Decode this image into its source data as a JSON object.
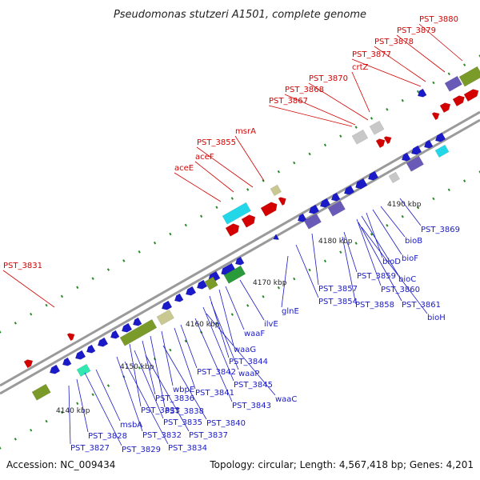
{
  "title": "Pseudomonas stutzeri A1501, complete genome",
  "accession": "Accession: NC_009434",
  "topology": "Topology: circular; Length: 4,567,418 bp; Genes: 4,201",
  "colors": {
    "cds_forward": "#d40000",
    "cds_reverse": "#1a1ac8",
    "backbone": "#9a9a9a",
    "cog_cyan": "#22d8e8",
    "cog_olive": "#7a9a2a",
    "cog_purple": "#6a5ab8",
    "cog_khaki": "#c8c890",
    "cog_gray": "#c8c8c8",
    "cog_green": "#2a9a3a",
    "tick_dots": "#2a8a2a"
  },
  "ticks": [
    "4140 kbp",
    "4150 kbp",
    "4160 kbp",
    "4170 kbp",
    "4180 kbp",
    "4190 kbp"
  ],
  "labels_top": [
    "PST_3880",
    "PST_3879",
    "PST_3878",
    "PST_3877",
    "crtZ",
    "PST_3870",
    "PST_3868",
    "PST_3867",
    "msrA",
    "PST_3855",
    "aceF",
    "aceE",
    "PST_3831"
  ],
  "labels_bottom": [
    "PST_3869",
    "bioB",
    "bioF",
    "bioD",
    "bioC",
    "PST_3860",
    "PST_3861",
    "bioH",
    "PST_3859",
    "PST_3857",
    "PST_3858",
    "PST_3854",
    "glnE",
    "ilvE",
    "waaF",
    "waaG",
    "PST_3844",
    "waaP",
    "PST_3845",
    "waaC",
    "PST_3843",
    "PST_3842",
    "PST_3841",
    "wbpE",
    "PST_3838",
    "PST_3836",
    "PST_3840",
    "PST_3833",
    "PST_3835",
    "PST_3837",
    "PST_3832",
    "PST_3834",
    "msbA",
    "PST_3829",
    "PST_3828",
    "PST_3827"
  ]
}
